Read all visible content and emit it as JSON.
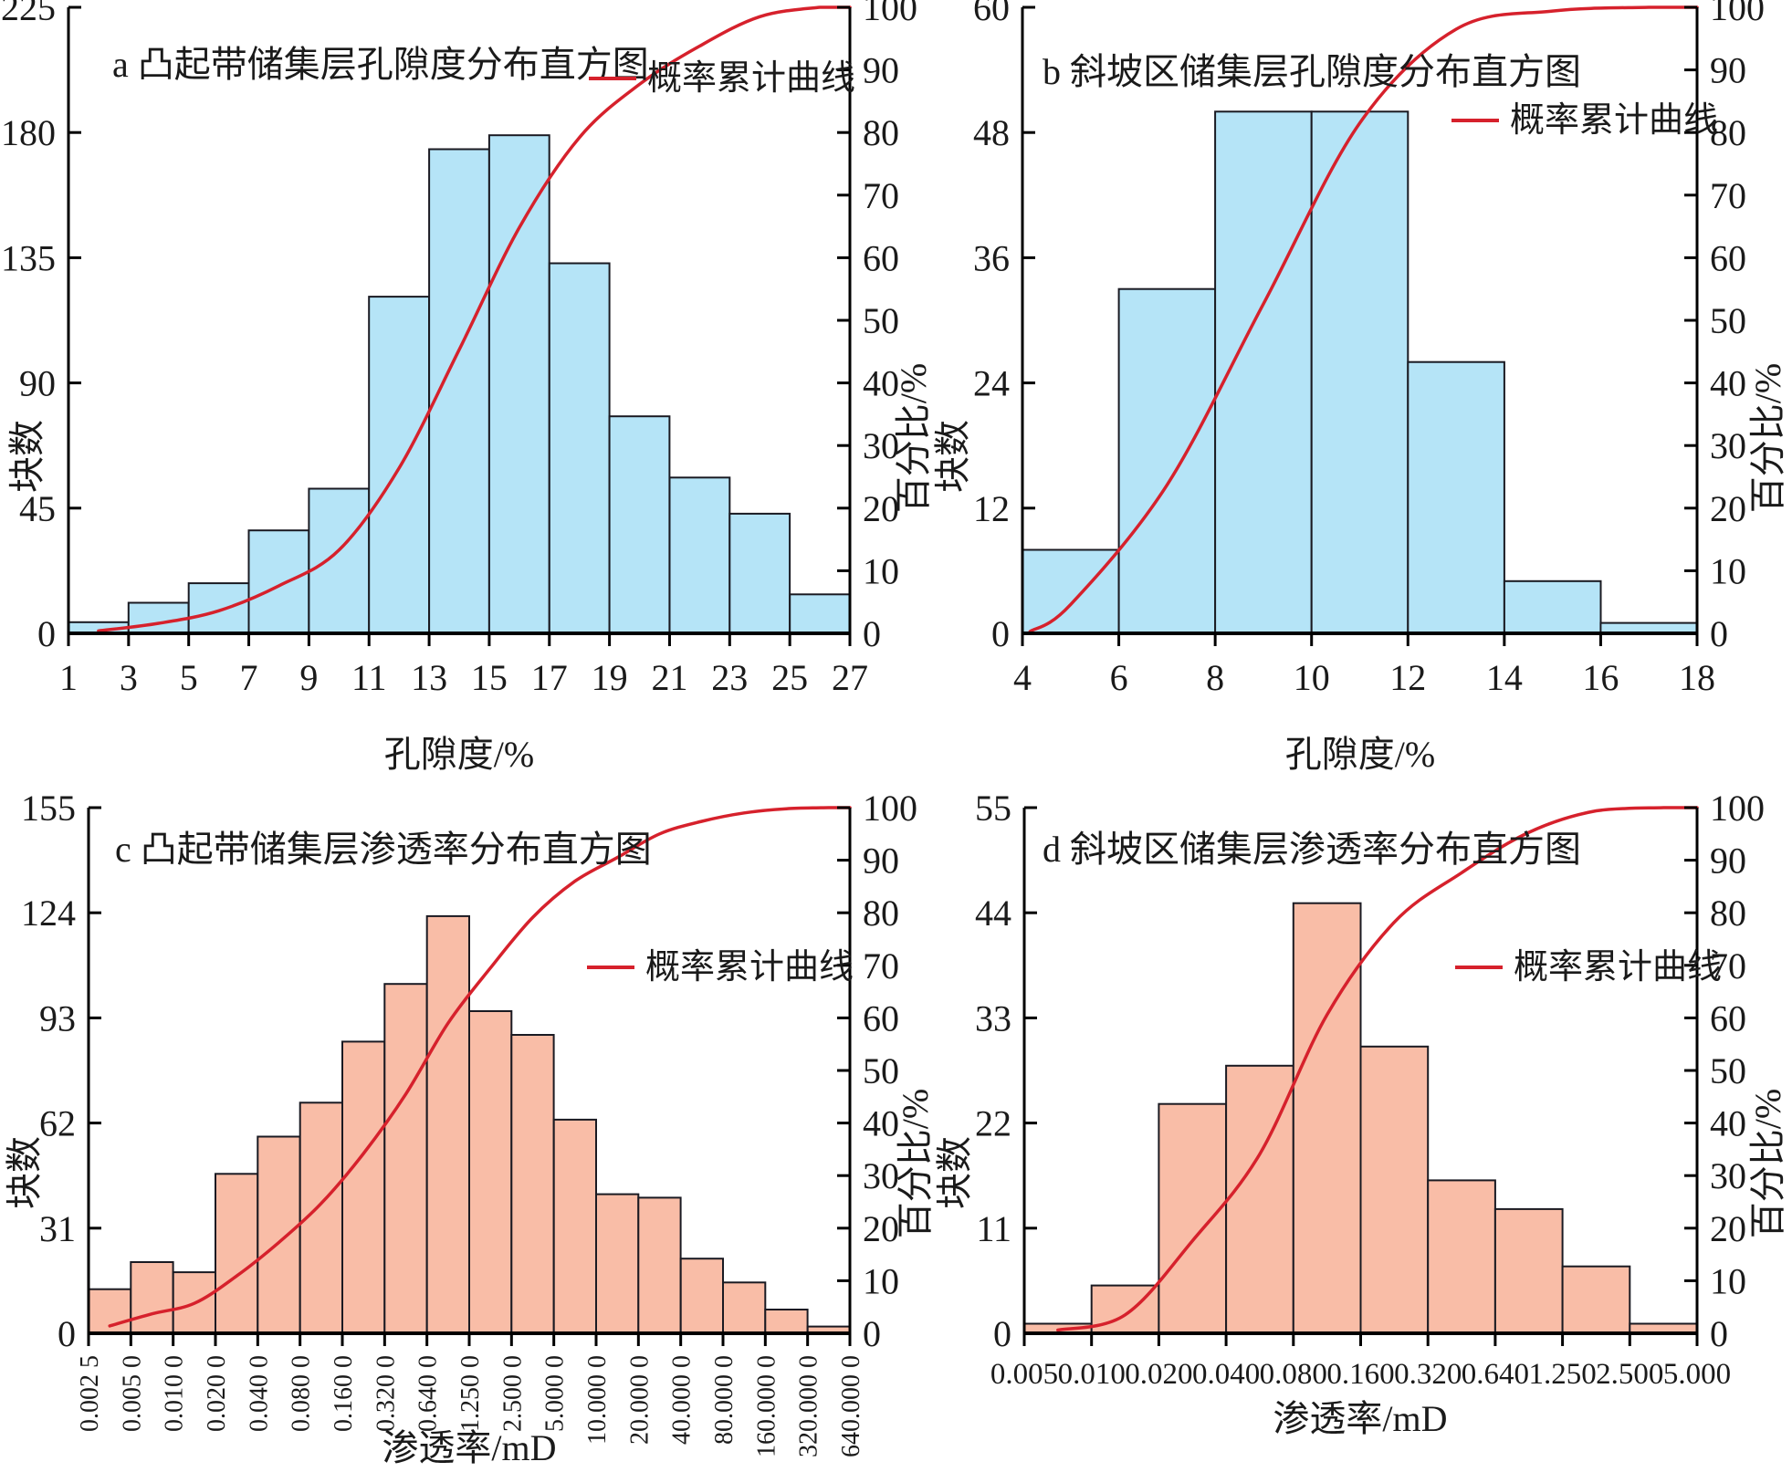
{
  "figure": {
    "background": "#ffffff",
    "colors": {
      "histogram_blue": "#b5e4f7",
      "histogram_salmon": "#f9bda7",
      "curve_red": "#d6212c",
      "bar_border": "#1a1a22",
      "axis": "#000000",
      "text": "#1a1a1a"
    },
    "legend_label": "概率累计曲线"
  },
  "chart_data": [
    {
      "id": "a",
      "type": "bar",
      "subtype": "histogram-with-cumulative-line",
      "title": "a 凸起带储集层孔隙度分布直方图",
      "xlabel": "孔隙度/%",
      "ylabel_left": "块数",
      "ylabel_right": "百分比/%",
      "legend": "概率累计曲线",
      "bar_color_key": "histogram_blue",
      "x_tick_labels": [
        "1",
        "3",
        "5",
        "7",
        "9",
        "11",
        "13",
        "15",
        "17",
        "19",
        "21",
        "23",
        "25",
        "27"
      ],
      "bin_edges": [
        1,
        3,
        5,
        7,
        9,
        11,
        13,
        15,
        17,
        19,
        21,
        23,
        25,
        27
      ],
      "counts": [
        4,
        11,
        18,
        37,
        52,
        121,
        174,
        179,
        133,
        78,
        56,
        43,
        14
      ],
      "ylim_left": [
        0,
        225
      ],
      "left_ticks": [
        0,
        45,
        90,
        135,
        180,
        225
      ],
      "ylim_right": [
        0,
        100
      ],
      "right_ticks": [
        0,
        10,
        20,
        30,
        40,
        50,
        60,
        70,
        80,
        90,
        100
      ],
      "cumulative_percent": [
        0.4,
        1.6,
        3.6,
        7.6,
        13.3,
        26.4,
        45.3,
        64.8,
        79.2,
        87.7,
        93.8,
        98.5,
        100
      ],
      "cumulative_curve": {
        "x_unit": "bin-index",
        "points": [
          [
            0.5,
            0.4
          ],
          [
            1.5,
            1.6
          ],
          [
            2.5,
            3.6
          ],
          [
            3.5,
            7.6
          ],
          [
            4.5,
            13.3
          ],
          [
            5.5,
            26.4
          ],
          [
            6.5,
            45.3
          ],
          [
            7.5,
            64.8
          ],
          [
            8.5,
            79.2
          ],
          [
            9.5,
            87.7
          ],
          [
            10.5,
            93.8
          ],
          [
            11.5,
            98.5
          ],
          [
            12.5,
            100
          ],
          [
            13,
            100
          ]
        ]
      }
    },
    {
      "id": "b",
      "type": "bar",
      "subtype": "histogram-with-cumulative-line",
      "title": "b 斜坡区储集层孔隙度分布直方图",
      "xlabel": "孔隙度/%",
      "ylabel_left": "块数",
      "ylabel_right": "百分比/%",
      "legend": "概率累计曲线",
      "bar_color_key": "histogram_blue",
      "x_tick_labels": [
        "4",
        "6",
        "8",
        "10",
        "12",
        "14",
        "16",
        "18"
      ],
      "bin_edges": [
        4,
        6,
        8,
        10,
        12,
        14,
        16,
        18
      ],
      "counts": [
        8,
        33,
        50,
        50,
        26,
        5,
        1
      ],
      "ylim_left": [
        0,
        60
      ],
      "left_ticks": [
        0,
        12,
        24,
        36,
        48,
        60
      ],
      "ylim_right": [
        0,
        100
      ],
      "right_ticks": [
        0,
        10,
        20,
        30,
        40,
        50,
        60,
        70,
        80,
        90,
        100
      ],
      "cumulative_percent": [
        4.6,
        23.7,
        52.6,
        81.5,
        96.5,
        99.4,
        100
      ],
      "cumulative_curve": {
        "x_unit": "bin-index",
        "points": [
          [
            0.08,
            0.3
          ],
          [
            0.5,
            4.6
          ],
          [
            1.5,
            23.7
          ],
          [
            2.5,
            52.6
          ],
          [
            3.5,
            81.5
          ],
          [
            4.5,
            96.5
          ],
          [
            5.5,
            99.4
          ],
          [
            6.5,
            100
          ],
          [
            7,
            100
          ]
        ]
      }
    },
    {
      "id": "c",
      "type": "bar",
      "subtype": "histogram-with-cumulative-line",
      "title": "c 凸起带储集层渗透率分布直方图",
      "xlabel": "渗透率/mD",
      "ylabel_left": "块数",
      "ylabel_right": "百分比/%",
      "legend": "概率累计曲线",
      "bar_color_key": "histogram_salmon",
      "x_tick_labels": [
        "0.002 5",
        "0.005 0",
        "0.010 0",
        "0.020 0",
        "0.040 0",
        "0.080 0",
        "0.160 0",
        "0.320 0",
        "0.640 0",
        "1.250 0",
        "2.500 0",
        "5.000 0",
        "10.000 0",
        "20.000 0",
        "40.000 0",
        "80.000 0",
        "160.000 0",
        "320.000 0",
        "640.000 0"
      ],
      "bin_edges": [
        0.0025,
        0.005,
        0.01,
        0.02,
        0.04,
        0.08,
        0.16,
        0.32,
        0.64,
        1.25,
        2.5,
        5,
        10,
        20,
        40,
        80,
        160,
        320,
        640
      ],
      "counts": [
        13,
        21,
        18,
        47,
        58,
        68,
        86,
        103,
        123,
        95,
        88,
        63,
        41,
        40,
        22,
        15,
        7,
        2
      ],
      "ylim_left": [
        0,
        155
      ],
      "left_ticks": [
        0,
        31,
        62,
        93,
        124,
        155
      ],
      "ylim_right": [
        0,
        100
      ],
      "right_ticks": [
        0,
        10,
        20,
        30,
        40,
        50,
        60,
        70,
        80,
        90,
        100
      ],
      "cumulative_percent": [
        1.4,
        3.7,
        5.7,
        10.9,
        17.3,
        24.7,
        34.2,
        45.5,
        59.0,
        69.5,
        79.1,
        86.0,
        90.5,
        95.0,
        97.4,
        99.0,
        99.8,
        100
      ],
      "cumulative_curve": {
        "x_unit": "bin-index",
        "points": [
          [
            0.5,
            1.4
          ],
          [
            1.5,
            3.7
          ],
          [
            2.5,
            5.7
          ],
          [
            3.5,
            10.9
          ],
          [
            4.5,
            17.3
          ],
          [
            5.5,
            24.7
          ],
          [
            6.5,
            34.2
          ],
          [
            7.5,
            45.5
          ],
          [
            8.5,
            59.0
          ],
          [
            9.5,
            69.5
          ],
          [
            10.5,
            79.1
          ],
          [
            11.5,
            86.0
          ],
          [
            12.5,
            90.5
          ],
          [
            13.5,
            95.0
          ],
          [
            14.5,
            97.4
          ],
          [
            15.5,
            99.0
          ],
          [
            16.5,
            99.8
          ],
          [
            17.5,
            100
          ],
          [
            18,
            100
          ]
        ]
      }
    },
    {
      "id": "d",
      "type": "bar",
      "subtype": "histogram-with-cumulative-line",
      "title": "d 斜坡区储集层渗透率分布直方图",
      "xlabel": "渗透率/mD",
      "ylabel_left": "块数",
      "ylabel_right": "百分比/%",
      "legend": "概率累计曲线",
      "bar_color_key": "histogram_salmon",
      "x_tick_labels": [
        "0.005",
        "0.010",
        "0.020",
        "0.040",
        "0.080",
        "0.160",
        "0.320",
        "0.640",
        "1.250",
        "2.500",
        "5.000"
      ],
      "bin_edges": [
        0.005,
        0.01,
        0.02,
        0.04,
        0.08,
        0.16,
        0.32,
        0.64,
        1.25,
        2.5,
        5
      ],
      "counts": [
        1,
        5,
        24,
        28,
        45,
        30,
        16,
        13,
        7,
        1
      ],
      "ylim_left": [
        0,
        55
      ],
      "left_ticks": [
        0,
        11,
        22,
        33,
        44,
        55
      ],
      "ylim_right": [
        0,
        100
      ],
      "right_ticks": [
        0,
        10,
        20,
        30,
        40,
        50,
        60,
        70,
        80,
        90,
        100
      ],
      "cumulative_percent": [
        0.6,
        3.5,
        17.6,
        34.1,
        60.6,
        78.2,
        87.6,
        95.3,
        99.4,
        100
      ],
      "cumulative_curve": {
        "x_unit": "bin-index",
        "points": [
          [
            0.5,
            0.6
          ],
          [
            1.5,
            3.5
          ],
          [
            2.5,
            17.6
          ],
          [
            3.5,
            34.1
          ],
          [
            4.5,
            60.6
          ],
          [
            5.5,
            78.2
          ],
          [
            6.5,
            87.6
          ],
          [
            7.5,
            95.3
          ],
          [
            8.5,
            99.4
          ],
          [
            9.5,
            100
          ],
          [
            10,
            100
          ]
        ]
      }
    }
  ]
}
